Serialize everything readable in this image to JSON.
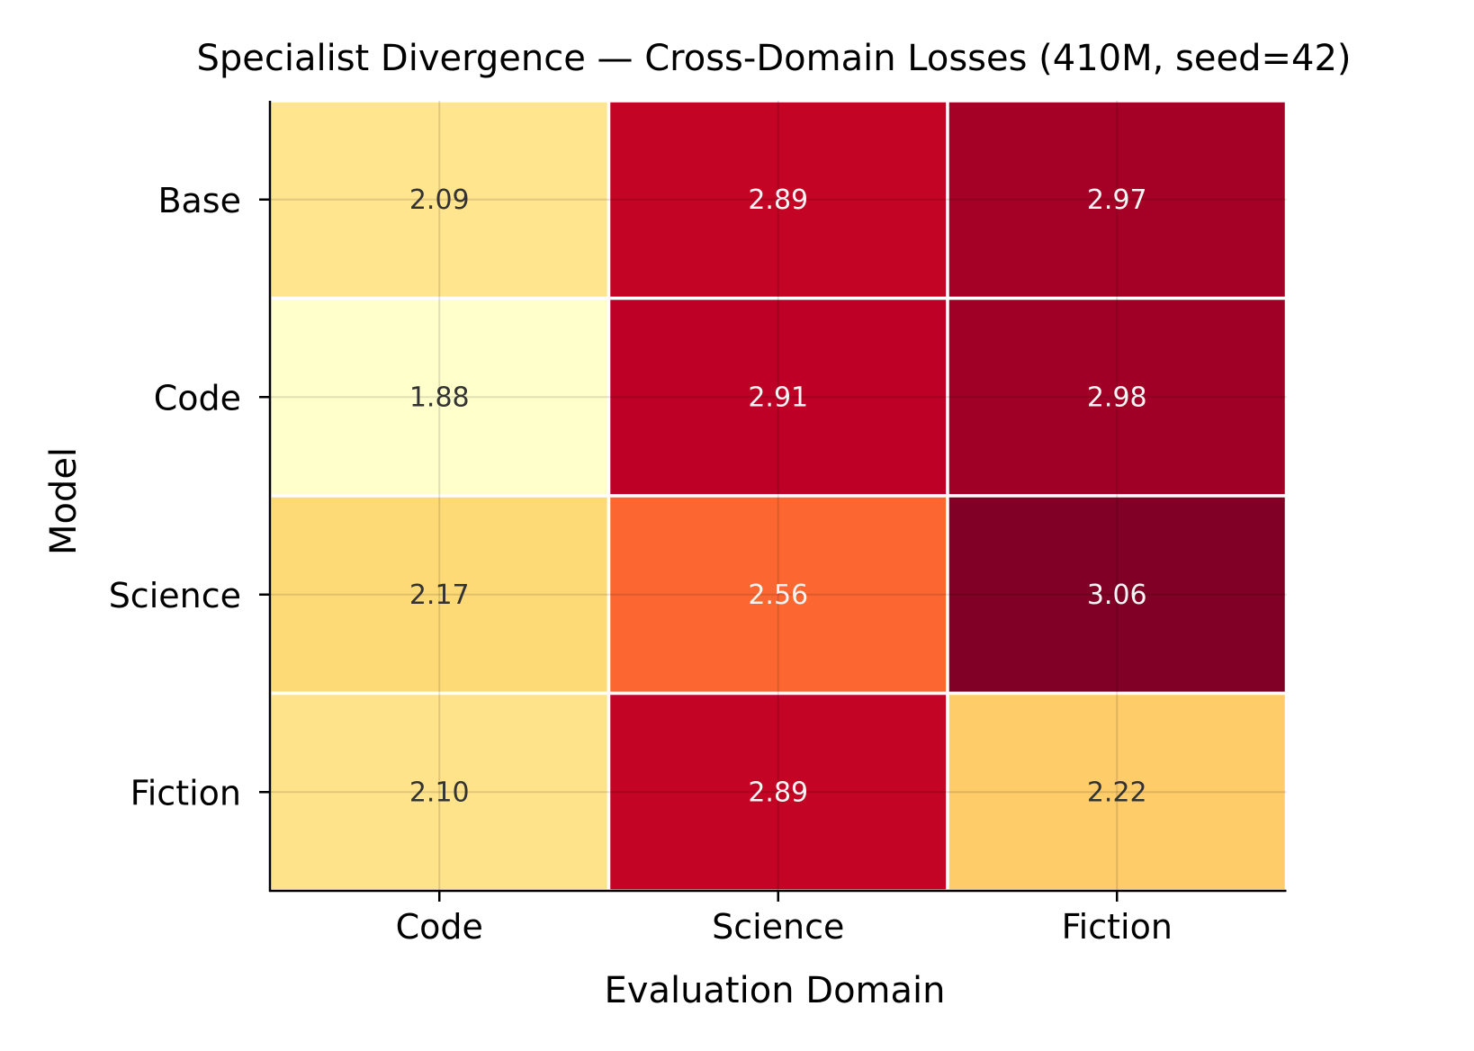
{
  "chart_data": {
    "type": "heatmap",
    "title": "Specialist Divergence — Cross-Domain Losses (410M, seed=42)",
    "xlabel": "Evaluation Domain",
    "ylabel": "Model",
    "x_categories": [
      "Code",
      "Science",
      "Fiction"
    ],
    "y_categories": [
      "Base",
      "Code",
      "Science",
      "Fiction"
    ],
    "values": [
      [
        2.09,
        2.89,
        2.97
      ],
      [
        1.88,
        2.91,
        2.98
      ],
      [
        2.17,
        2.56,
        3.06
      ],
      [
        2.1,
        2.89,
        2.22
      ]
    ],
    "value_labels": [
      [
        "2.09",
        "2.89",
        "2.97"
      ],
      [
        "1.88",
        "2.91",
        "2.98"
      ],
      [
        "2.17",
        "2.56",
        "3.06"
      ],
      [
        "2.10",
        "2.89",
        "2.22"
      ]
    ],
    "colormap": "YlOrRd",
    "grid": true,
    "colorbar": false
  }
}
